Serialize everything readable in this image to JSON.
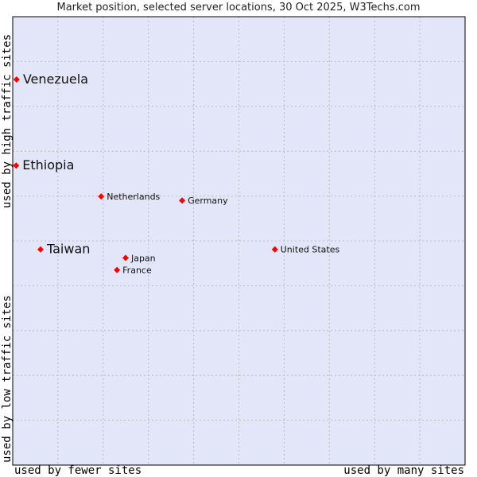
{
  "chart_data": {
    "type": "scatter",
    "title": "Market position, selected server locations, 30 Oct 2025, W3Techs.com",
    "xlabel_low": "used by fewer sites",
    "xlabel_high": "used by many sites",
    "ylabel_low": "used by low traffic sites",
    "ylabel_high": "used by high traffic sites",
    "xlim": [
      0,
      100
    ],
    "ylim": [
      0,
      100
    ],
    "grid": true,
    "point_color": "#ff0000",
    "background": "#e3e5f8",
    "points": [
      {
        "label": "Venezuela",
        "x": 0.5,
        "y": 86.0,
        "highlight": true
      },
      {
        "label": "Ethiopia",
        "x": 0.4,
        "y": 66.8,
        "highlight": true
      },
      {
        "label": "Netherlands",
        "x": 19.2,
        "y": 59.9,
        "highlight": false
      },
      {
        "label": "Germany",
        "x": 37.1,
        "y": 59.0,
        "highlight": false
      },
      {
        "label": "Taiwan",
        "x": 5.8,
        "y": 48.1,
        "highlight": true
      },
      {
        "label": "United States",
        "x": 57.6,
        "y": 48.1,
        "highlight": false
      },
      {
        "label": "Japan",
        "x": 24.6,
        "y": 46.2,
        "highlight": false
      },
      {
        "label": "France",
        "x": 22.7,
        "y": 43.5,
        "highlight": false
      }
    ]
  }
}
